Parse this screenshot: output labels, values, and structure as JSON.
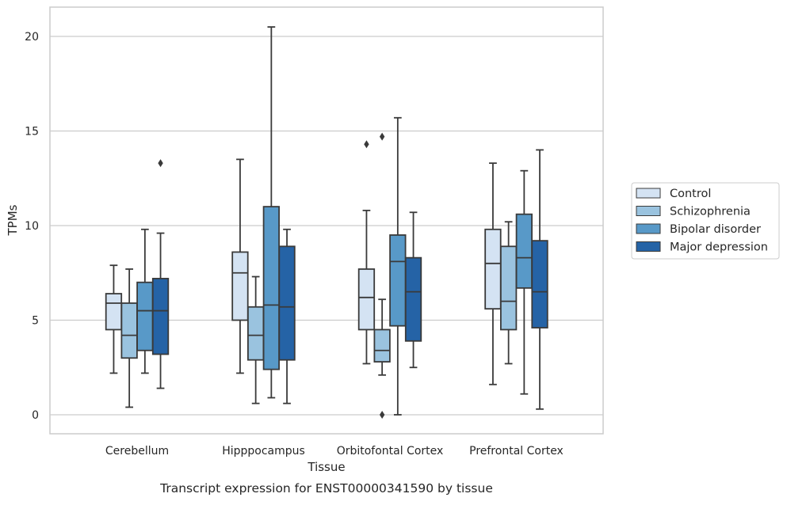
{
  "chart_data": {
    "type": "box",
    "title": "Transcript expression for ENST00000341590 by tissue",
    "xlabel": "Tissue",
    "ylabel": "TPMs",
    "ylim": [
      -1,
      21.6
    ],
    "yticks": [
      0,
      5,
      10,
      15,
      20
    ],
    "grid": "horizontal",
    "legend_position": "right",
    "categories": [
      "Cerebellum",
      "Hipppocampus",
      "Orbitofontal Cortex",
      "Prefrontal Cortex"
    ],
    "series": [
      {
        "name": "Control",
        "color": "#d4e3f3",
        "boxes": [
          {
            "whislo": 2.2,
            "q1": 4.5,
            "med": 5.9,
            "q3": 6.4,
            "whishi": 7.9,
            "fliers": []
          },
          {
            "whislo": 2.2,
            "q1": 5.0,
            "med": 7.5,
            "q3": 8.6,
            "whishi": 13.5,
            "fliers": []
          },
          {
            "whislo": 2.7,
            "q1": 4.5,
            "med": 6.2,
            "q3": 7.7,
            "whishi": 10.8,
            "fliers": [
              14.3
            ]
          },
          {
            "whislo": 1.6,
            "q1": 5.6,
            "med": 8.0,
            "q3": 9.8,
            "whishi": 13.3,
            "fliers": []
          }
        ]
      },
      {
        "name": "Schizophrenia",
        "color": "#9ac3df",
        "boxes": [
          {
            "whislo": 0.4,
            "q1": 3.0,
            "med": 4.2,
            "q3": 5.9,
            "whishi": 7.7,
            "fliers": []
          },
          {
            "whislo": 0.6,
            "q1": 2.9,
            "med": 4.2,
            "q3": 5.7,
            "whishi": 7.3,
            "fliers": []
          },
          {
            "whislo": 2.1,
            "q1": 2.8,
            "med": 3.4,
            "q3": 4.5,
            "whishi": 6.1,
            "fliers": [
              14.7,
              0.0
            ]
          },
          {
            "whislo": 2.7,
            "q1": 4.5,
            "med": 6.0,
            "q3": 8.9,
            "whishi": 10.2,
            "fliers": []
          }
        ]
      },
      {
        "name": "Bipolar disorder",
        "color": "#5899c8",
        "boxes": [
          {
            "whislo": 2.2,
            "q1": 3.4,
            "med": 5.5,
            "q3": 7.0,
            "whishi": 9.8,
            "fliers": []
          },
          {
            "whislo": 0.9,
            "q1": 2.4,
            "med": 5.8,
            "q3": 11.0,
            "whishi": 20.5,
            "fliers": []
          },
          {
            "whislo": 0.0,
            "q1": 4.7,
            "med": 8.1,
            "q3": 9.5,
            "whishi": 15.7,
            "fliers": []
          },
          {
            "whislo": 1.1,
            "q1": 6.7,
            "med": 8.3,
            "q3": 10.6,
            "whishi": 12.9,
            "fliers": []
          }
        ]
      },
      {
        "name": "Major depression",
        "color": "#2563a6",
        "boxes": [
          {
            "whislo": 1.4,
            "q1": 3.2,
            "med": 5.5,
            "q3": 7.2,
            "whishi": 9.6,
            "fliers": [
              13.3
            ]
          },
          {
            "whislo": 0.6,
            "q1": 2.9,
            "med": 5.7,
            "q3": 8.9,
            "whishi": 9.8,
            "fliers": []
          },
          {
            "whislo": 2.5,
            "q1": 3.9,
            "med": 6.5,
            "q3": 8.3,
            "whishi": 10.7,
            "fliers": []
          },
          {
            "whislo": 0.3,
            "q1": 4.6,
            "med": 6.5,
            "q3": 9.2,
            "whishi": 14.0,
            "fliers": []
          }
        ]
      }
    ]
  }
}
